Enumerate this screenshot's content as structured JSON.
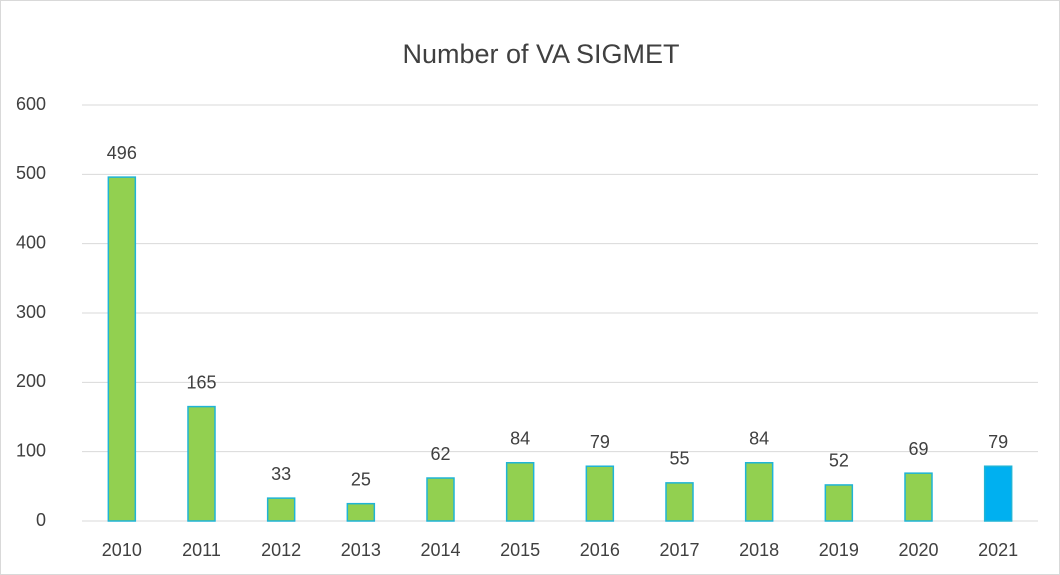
{
  "chart_data": {
    "type": "bar",
    "title": "Number of VA SIGMET",
    "categories": [
      "2010",
      "2011",
      "2012",
      "2013",
      "2014",
      "2015",
      "2016",
      "2017",
      "2018",
      "2019",
      "2020",
      "2021"
    ],
    "values": [
      496,
      165,
      33,
      25,
      62,
      84,
      79,
      55,
      84,
      52,
      69,
      79
    ],
    "colors": [
      "#92d050",
      "#92d050",
      "#92d050",
      "#92d050",
      "#92d050",
      "#92d050",
      "#92d050",
      "#92d050",
      "#92d050",
      "#92d050",
      "#92d050",
      "#00b0f0"
    ],
    "edgecolor": "#1fb4d6",
    "ylim": [
      0,
      600
    ],
    "yticks": [
      0,
      100,
      200,
      300,
      400,
      500,
      600
    ],
    "grid": true
  }
}
